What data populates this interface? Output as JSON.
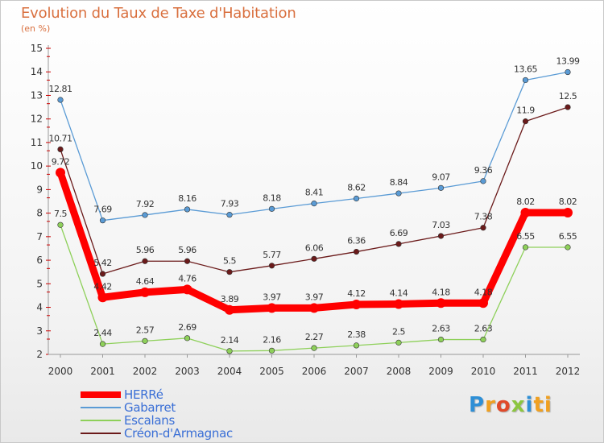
{
  "header": {
    "title": "Evolution du Taux de Taxe d'Habitation",
    "subtitle": "(en %)"
  },
  "logo": {
    "letters": [
      "P",
      "r",
      "o",
      "x",
      "i",
      "ti"
    ]
  },
  "chart_data": {
    "type": "line",
    "title": "Evolution du Taux de Taxe d'Habitation",
    "ylabel": "(en %)",
    "xlabel": "",
    "categories": [
      "2000",
      "2001",
      "2002",
      "2003",
      "2004",
      "2005",
      "2006",
      "2007",
      "2008",
      "2009",
      "2010",
      "2011",
      "2012"
    ],
    "ylim": [
      2,
      15
    ],
    "yticks": [
      2,
      3,
      4,
      5,
      6,
      7,
      8,
      9,
      10,
      11,
      12,
      13,
      14,
      15
    ],
    "grid": false,
    "legend_position": "bottom-left",
    "series": [
      {
        "name": "HERRé",
        "color": "#ff0000",
        "emphasis": true,
        "values": [
          9.72,
          4.42,
          4.64,
          4.76,
          3.89,
          3.97,
          3.97,
          4.12,
          4.14,
          4.18,
          4.18,
          8.02,
          8.02
        ],
        "labels": [
          "9.72",
          "4.42",
          "4.64",
          "4.76",
          "3.89",
          "3.97",
          "3.97",
          "4.12",
          "4.14",
          "4.18",
          "4.18",
          "8.02",
          "8.02"
        ]
      },
      {
        "name": "Gabarret",
        "color": "#5a9bd5",
        "emphasis": false,
        "values": [
          12.81,
          7.69,
          7.92,
          8.16,
          7.93,
          8.18,
          8.41,
          8.62,
          8.84,
          9.07,
          9.36,
          13.65,
          13.99
        ],
        "labels": [
          "12.81",
          "7.69",
          "7.92",
          "8.16",
          "7.93",
          "8.18",
          "8.41",
          "8.62",
          "8.84",
          "9.07",
          "9.36",
          "13.65",
          "13.99"
        ]
      },
      {
        "name": "Escalans",
        "color": "#8ed05a",
        "emphasis": false,
        "values": [
          7.5,
          2.44,
          2.57,
          2.69,
          2.14,
          2.16,
          2.27,
          2.38,
          2.5,
          2.63,
          2.63,
          6.55,
          6.55
        ],
        "labels": [
          "7.5",
          "2.44",
          "2.57",
          "2.69",
          "2.14",
          "2.16",
          "2.27",
          "2.38",
          "2.5",
          "2.63",
          "2.63",
          "6.55",
          "6.55"
        ]
      },
      {
        "name": "Créon-d'Armagnac",
        "color": "#6b1a1a",
        "emphasis": false,
        "values": [
          10.71,
          5.42,
          5.96,
          5.96,
          5.5,
          5.77,
          6.06,
          6.36,
          6.69,
          7.03,
          7.38,
          11.9,
          12.5
        ],
        "labels": [
          "10.71",
          "5.42",
          "5.96",
          "5.96",
          "5.5",
          "5.77",
          "6.06",
          "6.36",
          "6.69",
          "7.03",
          "7.38",
          "11.9",
          "12.5"
        ]
      }
    ]
  }
}
